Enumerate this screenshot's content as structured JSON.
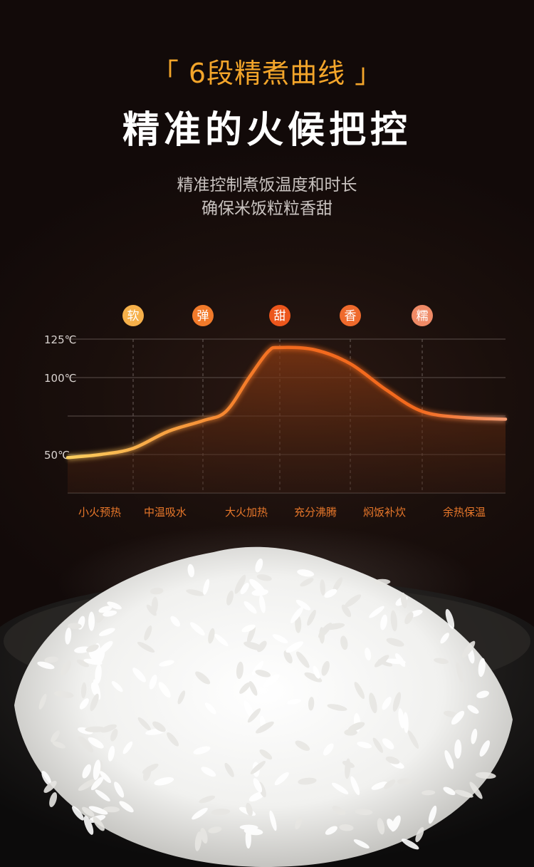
{
  "header": {
    "tag": "「 6段精煮曲线 」",
    "title": "精准的火候把控",
    "subtitle_lines": [
      "精准控制煮饭温度和时长",
      "确保米饭粒粒香甜"
    ]
  },
  "chart_data": {
    "type": "area",
    "title": "",
    "xlabel": "",
    "ylabel": "",
    "ylim": [
      25,
      125
    ],
    "yticks": [
      {
        "value": 125,
        "label": "125℃"
      },
      {
        "value": 100,
        "label": "100℃"
      },
      {
        "value": 75,
        "label": ""
      },
      {
        "value": 50,
        "label": "50℃"
      },
      {
        "value": 25,
        "label": ""
      }
    ],
    "grid": true,
    "stages": [
      "小火预热",
      "中温吸水",
      "大火加热",
      "充分沸腾",
      "焖饭补炊",
      "余热保温"
    ],
    "badges": [
      {
        "label": "软",
        "color": "#f6b04a"
      },
      {
        "label": "弹",
        "color": "#f27a2a"
      },
      {
        "label": "甜",
        "color": "#ec561c"
      },
      {
        "label": "香",
        "color": "#ef6a2c"
      },
      {
        "label": "糯",
        "color": "#ef8a66"
      }
    ],
    "curve": {
      "x": [
        0,
        0.5,
        1,
        1.5,
        2,
        2.3,
        2.6,
        2.85,
        3,
        3.5,
        4,
        4.5,
        5,
        5.5,
        6
      ],
      "y": [
        48,
        50,
        54,
        65,
        72,
        78,
        100,
        117,
        119.5,
        118,
        109,
        92,
        78,
        74,
        73
      ]
    },
    "colors": {
      "line_start": "#fbd060",
      "line_mid": "#f36a1e",
      "line_end": "#f39a70",
      "label": "#e8772a"
    }
  }
}
